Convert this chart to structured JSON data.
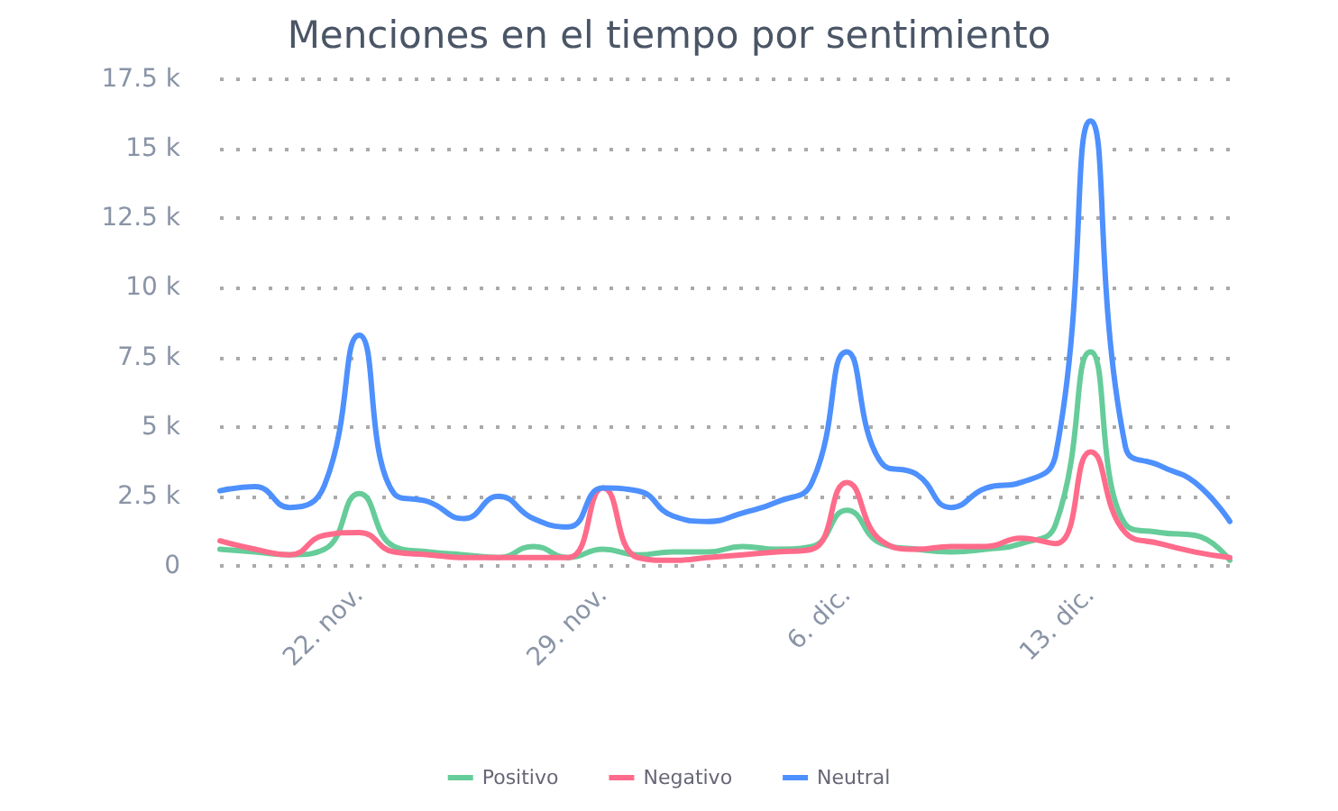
{
  "chart_data": {
    "type": "line",
    "title": "Menciones en el tiempo por sentimiento",
    "x": [
      "--11-18",
      "--11-19",
      "--11-20",
      "--11-21",
      "--11-22",
      "--11-23",
      "--11-24",
      "--11-25",
      "--11-26",
      "--11-27",
      "--11-28",
      "--11-29",
      "--11-30",
      "--12-01",
      "--12-02",
      "--12-03",
      "--12-04",
      "--12-05",
      "--12-06",
      "--12-07",
      "--12-08",
      "--12-09",
      "--12-10",
      "--12-11",
      "--12-12",
      "--12-13",
      "--12-14",
      "--12-15",
      "--12-16",
      "--12-17"
    ],
    "series": [
      {
        "name": "Positivo",
        "color": "#66cc99",
        "values": [
          0.6,
          0.5,
          0.4,
          0.6,
          2.6,
          0.7,
          0.5,
          0.4,
          0.3,
          0.7,
          0.3,
          0.6,
          0.4,
          0.5,
          0.5,
          0.7,
          0.6,
          0.7,
          2.0,
          0.8,
          0.6,
          0.5,
          0.6,
          0.8,
          1.5,
          7.7,
          1.5,
          1.2,
          1.1,
          0.2
        ]
      },
      {
        "name": "Negativo",
        "color": "#ff6b8a",
        "values": [
          0.9,
          0.6,
          0.4,
          1.1,
          1.2,
          0.5,
          0.4,
          0.3,
          0.3,
          0.3,
          0.3,
          2.8,
          0.3,
          0.2,
          0.3,
          0.4,
          0.5,
          0.6,
          3.0,
          0.9,
          0.6,
          0.7,
          0.7,
          1.0,
          0.8,
          4.1,
          1.2,
          0.8,
          0.5,
          0.3
        ]
      },
      {
        "name": "Neutral",
        "color": "#4d90fe",
        "values": [
          2.7,
          2.85,
          2.1,
          2.9,
          8.3,
          2.6,
          2.3,
          1.7,
          2.5,
          1.7,
          1.4,
          2.8,
          2.7,
          1.8,
          1.6,
          1.9,
          2.3,
          3.0,
          7.7,
          3.7,
          3.3,
          2.1,
          2.8,
          3.0,
          4.0,
          16.0,
          4.3,
          3.6,
          3.0,
          1.6
        ]
      }
    ],
    "xlim": [
      "--11-18",
      "--12-17"
    ],
    "xticks": [
      {
        "value": "--11-22",
        "label": "22. nov."
      },
      {
        "value": "--11-29",
        "label": "29. nov."
      },
      {
        "value": "--12-06",
        "label": "6. dic."
      },
      {
        "value": "--12-13",
        "label": "13. dic."
      }
    ],
    "ylim": [
      0,
      17.5
    ],
    "yticks": [
      {
        "value": 0,
        "label": "0"
      },
      {
        "value": 2.5,
        "label": "2.5 k"
      },
      {
        "value": 5,
        "label": "5 k"
      },
      {
        "value": 7.5,
        "label": "7.5 k"
      },
      {
        "value": 10,
        "label": "10 k"
      },
      {
        "value": 12.5,
        "label": "12.5 k"
      },
      {
        "value": 15,
        "label": "15 k"
      },
      {
        "value": 17.5,
        "label": "17.5 k"
      }
    ],
    "grid": "y",
    "legend": "bottom",
    "marker": "none",
    "line_style": "solid"
  }
}
